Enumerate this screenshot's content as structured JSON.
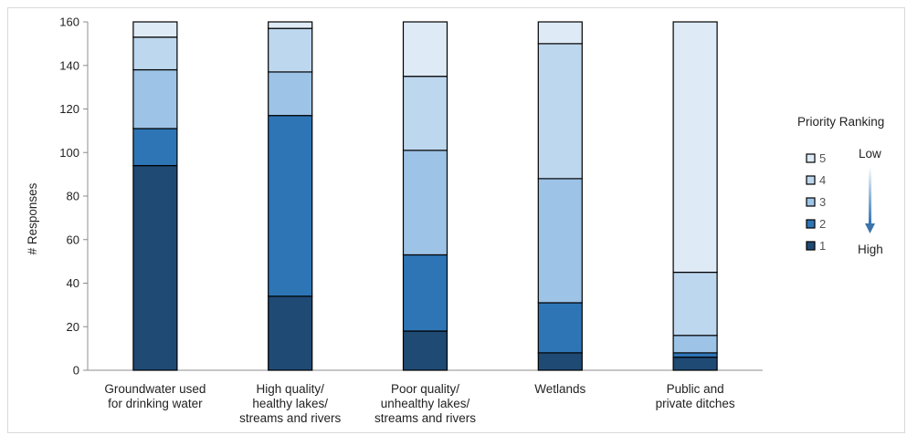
{
  "chart_data": {
    "type": "bar",
    "stacked": true,
    "title": "",
    "xlabel": "",
    "ylabel": "# Responses",
    "ylim": [
      0,
      160
    ],
    "yticks": [
      "0",
      "20",
      "40",
      "60",
      "80",
      "100",
      "120",
      "140",
      "160"
    ],
    "grid": false,
    "legend_position": "right",
    "legend_title": "Priority Ranking",
    "legend_low": "Low",
    "legend_high": "High",
    "categories": [
      [
        "Groundwater used",
        "for drinking water"
      ],
      [
        "High quality/",
        "healthy lakes/",
        "streams and rivers"
      ],
      [
        "Poor quality/",
        "unhealthy lakes/",
        "streams and rivers"
      ],
      [
        "Wetlands"
      ],
      [
        "Public and",
        "private ditches"
      ]
    ],
    "series": [
      {
        "name": "1",
        "color": "#1f4a74",
        "values": [
          94,
          34,
          18,
          8,
          6
        ]
      },
      {
        "name": "2",
        "color": "#2e75b6",
        "values": [
          17,
          83,
          35,
          23,
          2
        ]
      },
      {
        "name": "3",
        "color": "#9dc3e6",
        "values": [
          27,
          20,
          48,
          57,
          8
        ]
      },
      {
        "name": "4",
        "color": "#bdd7ee",
        "values": [
          15,
          20,
          34,
          62,
          29
        ]
      },
      {
        "name": "5",
        "color": "#deebf7",
        "values": [
          7,
          3,
          25,
          10,
          115
        ]
      }
    ]
  }
}
